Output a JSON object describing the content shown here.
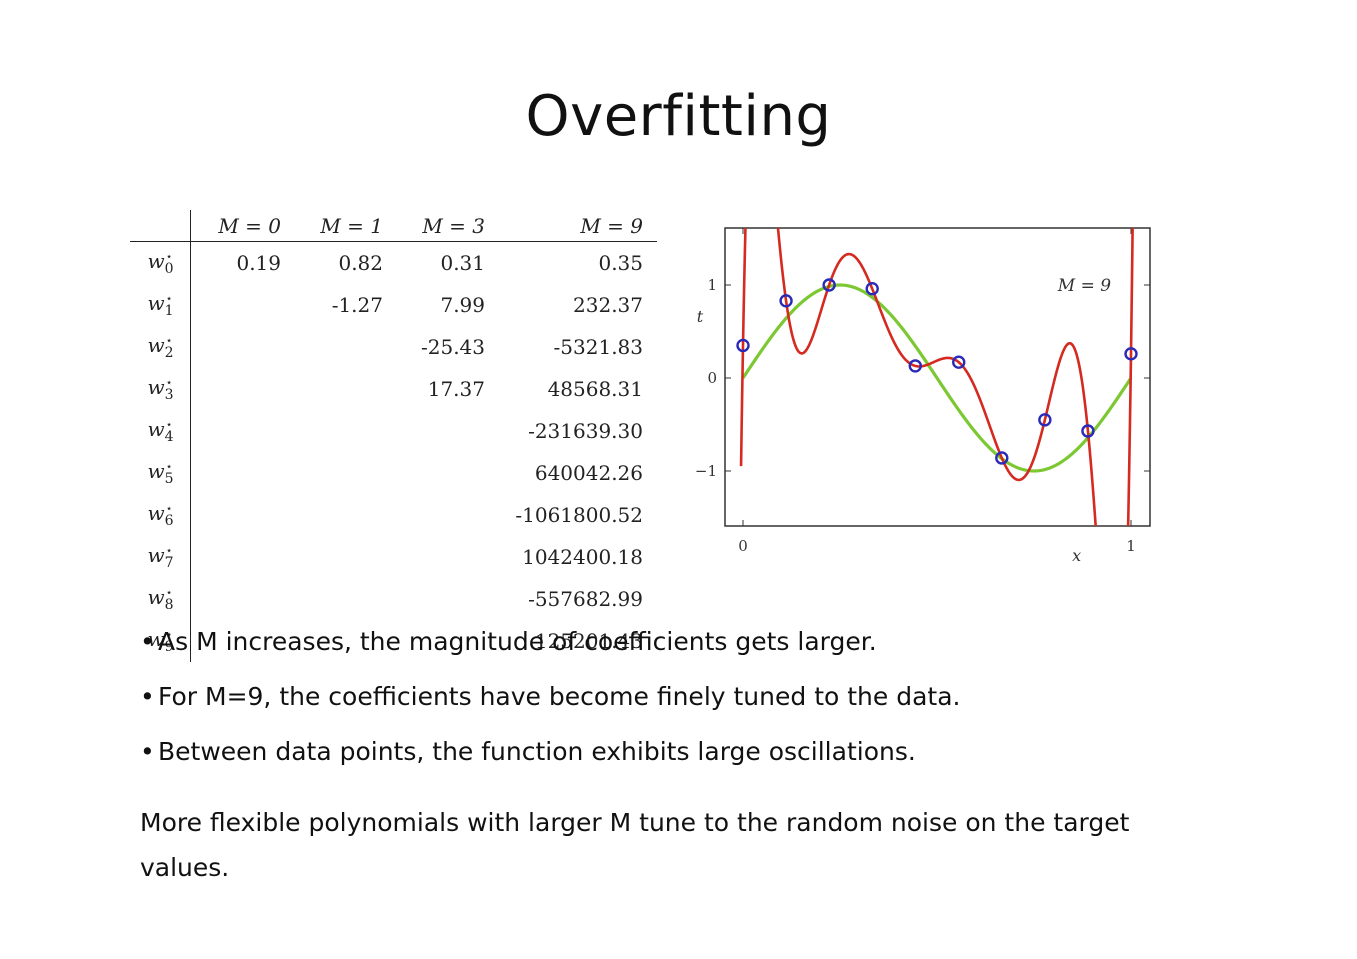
{
  "title": "Overfitting",
  "table": {
    "headers": [
      "M = 0",
      "M = 1",
      "M = 3",
      "M = 9"
    ],
    "rows": [
      {
        "label": "w",
        "sub": "0",
        "vals": [
          "0.19",
          "0.82",
          "0.31",
          "0.35"
        ]
      },
      {
        "label": "w",
        "sub": "1",
        "vals": [
          "",
          "-1.27",
          "7.99",
          "232.37"
        ]
      },
      {
        "label": "w",
        "sub": "2",
        "vals": [
          "",
          "",
          "-25.43",
          "-5321.83"
        ]
      },
      {
        "label": "w",
        "sub": "3",
        "vals": [
          "",
          "",
          "17.37",
          "48568.31"
        ]
      },
      {
        "label": "w",
        "sub": "4",
        "vals": [
          "",
          "",
          "",
          "-231639.30"
        ]
      },
      {
        "label": "w",
        "sub": "5",
        "vals": [
          "",
          "",
          "",
          "640042.26"
        ]
      },
      {
        "label": "w",
        "sub": "6",
        "vals": [
          "",
          "",
          "",
          "-1061800.52"
        ]
      },
      {
        "label": "w",
        "sub": "7",
        "vals": [
          "",
          "",
          "",
          "1042400.18"
        ]
      },
      {
        "label": "w",
        "sub": "8",
        "vals": [
          "",
          "",
          "",
          "-557682.99"
        ]
      },
      {
        "label": "w",
        "sub": "9",
        "vals": [
          "",
          "",
          "",
          "125201.43"
        ]
      }
    ],
    "star": "⋆"
  },
  "chart_data": {
    "type": "line",
    "annotation": "M = 9",
    "xlabel": "x",
    "ylabel": "t",
    "xlim": [
      0,
      1
    ],
    "ylim": [
      -1.6,
      1.6
    ],
    "xticks": [
      {
        "v": 0,
        "label": "0"
      },
      {
        "v": 1,
        "label": "1"
      }
    ],
    "yticks": [
      {
        "v": 1,
        "label": "1"
      },
      {
        "v": 0,
        "label": "0"
      },
      {
        "v": -1,
        "label": "−1"
      }
    ],
    "points": {
      "x": [
        0.0,
        0.111,
        0.222,
        0.333,
        0.444,
        0.556,
        0.667,
        0.778,
        0.889,
        1.0
      ],
      "y": [
        0.35,
        0.83,
        1.0,
        0.96,
        0.13,
        0.17,
        -0.86,
        -0.45,
        -0.57,
        0.26
      ]
    },
    "true_function": "sin(2πx)",
    "colors": {
      "fit": "#d42a20",
      "truth": "#7cc832",
      "points": "#2a2ab8"
    }
  },
  "bullets": [
    "As M increases, the magnitude of coefficients gets larger.",
    "For M=9, the coefficients have become finely tuned to the data.",
    "Between data points, the function exhibits large oscillations."
  ],
  "bullet_symbol": "•",
  "summary": "More flexible polynomials with larger M tune to the random noise on the target values."
}
